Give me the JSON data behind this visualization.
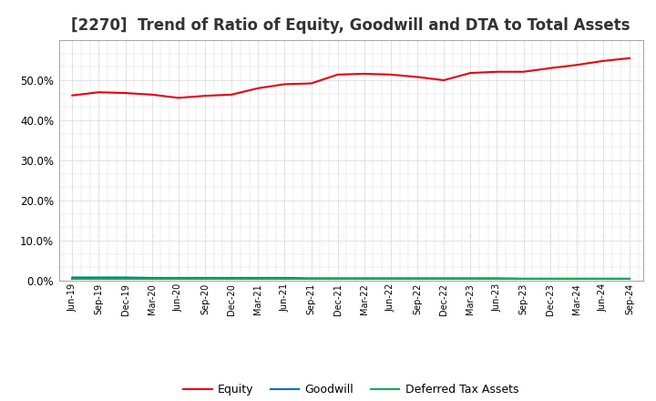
{
  "title": "[2270]  Trend of Ratio of Equity, Goodwill and DTA to Total Assets",
  "x_labels": [
    "Jun-19",
    "Sep-19",
    "Dec-19",
    "Mar-20",
    "Jun-20",
    "Sep-20",
    "Dec-20",
    "Mar-21",
    "Jun-21",
    "Sep-21",
    "Dec-21",
    "Mar-22",
    "Jun-22",
    "Sep-22",
    "Dec-22",
    "Mar-23",
    "Jun-23",
    "Sep-23",
    "Dec-23",
    "Mar-24",
    "Jun-24",
    "Sep-24"
  ],
  "equity": [
    0.462,
    0.47,
    0.468,
    0.464,
    0.456,
    0.461,
    0.464,
    0.48,
    0.49,
    0.492,
    0.514,
    0.516,
    0.514,
    0.508,
    0.5,
    0.518,
    0.521,
    0.521,
    0.53,
    0.538,
    0.548,
    0.555
  ],
  "goodwill": [
    0.008,
    0.008,
    0.008,
    0.007,
    0.007,
    0.007,
    0.007,
    0.007,
    0.007,
    0.006,
    0.006,
    0.006,
    0.006,
    0.006,
    0.006,
    0.006,
    0.006,
    0.005,
    0.005,
    0.005,
    0.005,
    0.005
  ],
  "dta": [
    0.005,
    0.005,
    0.005,
    0.005,
    0.005,
    0.005,
    0.005,
    0.005,
    0.005,
    0.005,
    0.005,
    0.005,
    0.005,
    0.005,
    0.005,
    0.005,
    0.005,
    0.005,
    0.005,
    0.005,
    0.005,
    0.005
  ],
  "equity_color": "#e8000d",
  "goodwill_color": "#0070c0",
  "dta_color": "#00b050",
  "bg_color": "#ffffff",
  "plot_bg_color": "#ffffff",
  "grid_color": "#999999",
  "ylim": [
    0.0,
    0.6
  ],
  "yticks": [
    0.0,
    0.1,
    0.2,
    0.3,
    0.4,
    0.5
  ],
  "title_fontsize": 12,
  "legend_labels": [
    "Equity",
    "Goodwill",
    "Deferred Tax Assets"
  ]
}
